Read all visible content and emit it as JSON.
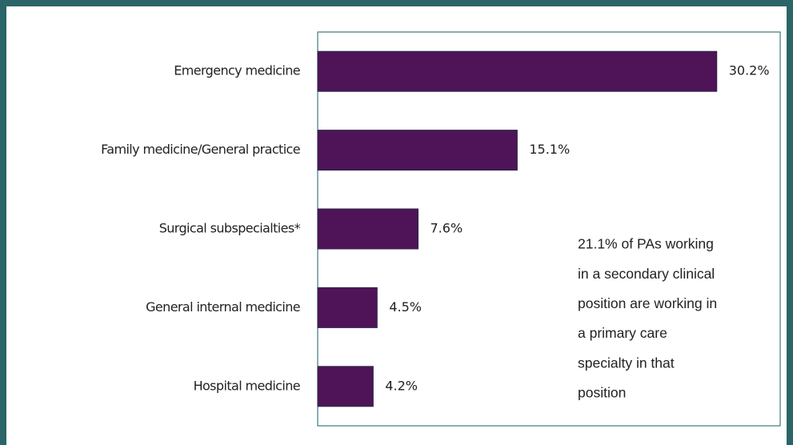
{
  "chart_data": {
    "type": "hbar",
    "categories": [
      "Emergency medicine",
      "Family medicine/General practice",
      "Surgical subspecialties*",
      "General internal medicine",
      "Hospital medicine"
    ],
    "values": [
      30.2,
      15.1,
      7.6,
      4.5,
      4.2
    ],
    "value_labels": [
      "30.2%",
      "15.1%",
      "7.6%",
      "4.5%",
      "4.2%"
    ],
    "color": "#4e1457",
    "xlim": [
      0,
      35
    ],
    "annotation": [
      "21.1% of PAs working",
      "in a secondary clinical",
      "position are working in",
      "a primary care",
      "specialty in that",
      "position"
    ]
  }
}
